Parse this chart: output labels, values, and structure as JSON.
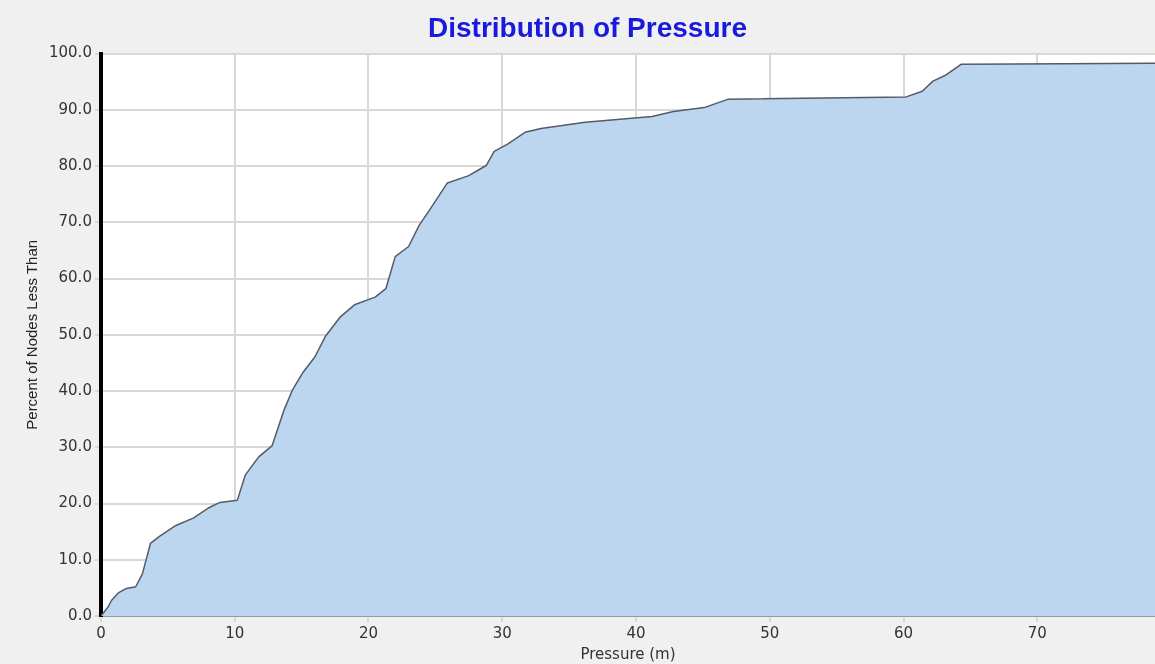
{
  "chart_data": {
    "type": "area",
    "title": "Distribution of Pressure",
    "xlabel": "Pressure (m)",
    "ylabel": "Percent of Nodes Less Than",
    "x": [
      0,
      0.5,
      0.8,
      1.3,
      1.9,
      2.6,
      3.1,
      3.7,
      4.4,
      5.6,
      6.9,
      8.1,
      8.9,
      10.2,
      10.8,
      11.8,
      12.8,
      13.7,
      14.3,
      15.1,
      16.0,
      16.8,
      17.9,
      19.0,
      20.5,
      21.3,
      22.0,
      23.0,
      23.8,
      24.6,
      25.9,
      27.5,
      28.8,
      29.4,
      30.4,
      31.7,
      32.9,
      36.2,
      41.2,
      42.8,
      45.1,
      46.9,
      60.2,
      61.4,
      62.2,
      63.1,
      64.3,
      78.8
    ],
    "series": [
      {
        "color": "#bcd6f0",
        "values": [
          0,
          1.5,
          2.8,
          4.1,
          4.9,
          5.2,
          7.5,
          12.9,
          14.2,
          16.1,
          17.4,
          19.3,
          20.2,
          20.6,
          25.1,
          28.3,
          30.3,
          36.7,
          40.1,
          43.3,
          46.1,
          49.8,
          53.2,
          55.4,
          56.7,
          58.2,
          63.9,
          65.7,
          69.5,
          72.3,
          77.0,
          78.3,
          80.1,
          82.6,
          83.9,
          86.0,
          86.7,
          87.8,
          88.8,
          89.7,
          90.4,
          91.9,
          92.3,
          93.3,
          95.1,
          96.1,
          98.1,
          98.3
        ]
      }
    ],
    "xlim": [
      0,
      78.8
    ],
    "xticks": [
      0,
      10,
      20,
      30,
      40,
      50,
      60,
      70
    ],
    "ylim": [
      0,
      100
    ],
    "yticks": [
      {
        "value": 0,
        "label": "0.0"
      },
      {
        "value": 10,
        "label": "10.0"
      },
      {
        "value": 20,
        "label": "20.0"
      },
      {
        "value": 30,
        "label": "30.0"
      },
      {
        "value": 40,
        "label": "40.0"
      },
      {
        "value": 50,
        "label": "50.0"
      },
      {
        "value": 60,
        "label": "60.0"
      },
      {
        "value": 70,
        "label": "70.0"
      },
      {
        "value": 80,
        "label": "80.0"
      },
      {
        "value": 90,
        "label": "90.0"
      },
      {
        "value": 100,
        "label": "100.0"
      }
    ],
    "grid": true,
    "legend": false,
    "marker": "none",
    "line_style": "solid"
  }
}
